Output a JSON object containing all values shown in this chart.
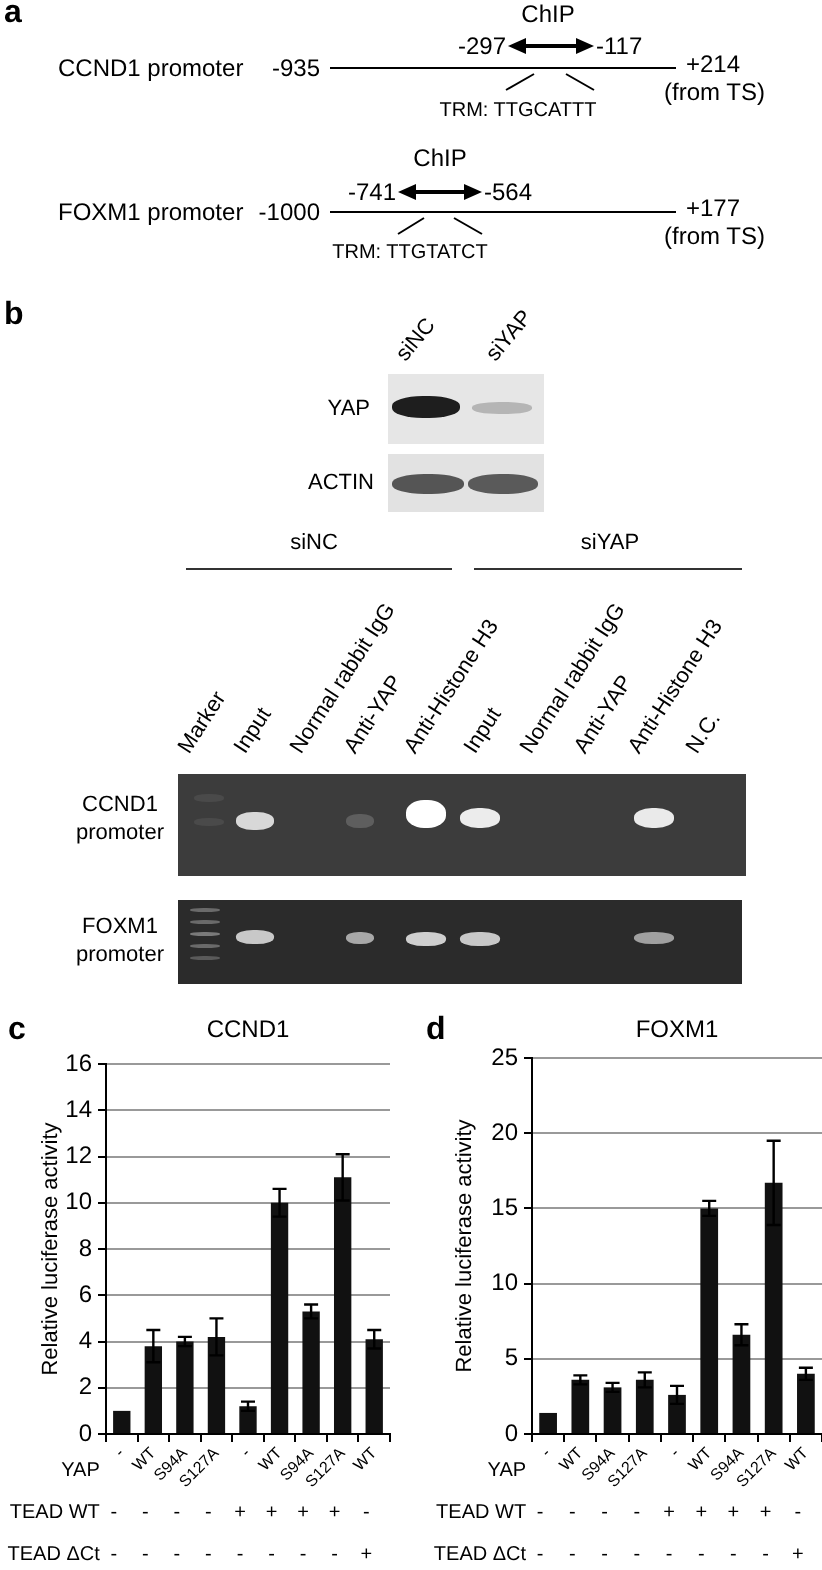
{
  "chart_data": [
    {
      "type": "other",
      "annotations": [
        "a",
        "ChIP",
        "-297",
        "-117",
        "CCND1 promoter",
        "-935",
        "+214",
        "(from TS)",
        "TRM: TTGCATTT",
        "ChIP",
        "-741",
        "-564",
        "FOXM1 promoter",
        "-1000",
        "+177",
        "(from TS)",
        "TRM: TTGTATCT"
      ]
    },
    {
      "type": "other",
      "annotations": [
        "b",
        "siNC",
        "siYAP",
        "YAP",
        "ACTIN",
        "siNC",
        "siYAP",
        "Marker",
        "Input",
        "Normal rabbit IgG",
        "Anti-YAP",
        "Anti-Histone H3",
        "Input",
        "Normal rabbit IgG",
        "Anti-YAP",
        "Anti-Histone H3",
        "N.C.",
        "CCND1 promoter",
        "FOXM1 promoter"
      ]
    },
    {
      "type": "bar",
      "title": "CCND1",
      "ylabel": "Relative luciferase activity",
      "xlabel": "YAP",
      "categories": [
        "-",
        "WT",
        "S94A",
        "S127A",
        "-",
        "WT",
        "S94A",
        "S127A",
        "WT"
      ],
      "values": [
        1.0,
        3.8,
        4.0,
        4.2,
        1.2,
        10.0,
        5.3,
        11.1,
        4.1
      ],
      "errors": [
        null,
        0.7,
        0.2,
        0.8,
        0.2,
        0.6,
        0.3,
        1.0,
        0.4
      ],
      "color": "#111111",
      "ylim": [
        0,
        16
      ],
      "yticks": [
        0,
        2,
        4,
        6,
        8,
        10,
        12,
        14,
        16
      ],
      "grid": "y",
      "annotations": [
        "c",
        "TEAD WT",
        "-",
        "-",
        "-",
        "-",
        "+",
        "+",
        "+",
        "+",
        "-",
        "TEAD ΔCt",
        "-",
        "-",
        "-",
        "-",
        "-",
        "-",
        "-",
        "-",
        "+"
      ]
    },
    {
      "type": "bar",
      "title": "FOXM1",
      "ylabel": "Relative luciferase activity",
      "xlabel": "YAP",
      "categories": [
        "-",
        "WT",
        "S94A",
        "S127A",
        "-",
        "WT",
        "S94A",
        "S127A",
        "WT"
      ],
      "values": [
        1.4,
        3.6,
        3.1,
        3.6,
        2.6,
        15.0,
        6.6,
        16.7,
        4.0
      ],
      "errors": [
        null,
        0.3,
        0.3,
        0.5,
        0.6,
        0.5,
        0.7,
        2.8,
        0.4
      ],
      "color": "#111111",
      "ylim": [
        0,
        25
      ],
      "yticks": [
        0,
        5,
        10,
        15,
        20,
        25
      ],
      "grid": "y",
      "annotations": [
        "d",
        "TEAD WT",
        "-",
        "-",
        "-",
        "-",
        "+",
        "+",
        "+",
        "+",
        "-",
        "TEAD ΔCt",
        "-",
        "-",
        "-",
        "-",
        "-",
        "-",
        "-",
        "-",
        "+"
      ]
    }
  ]
}
